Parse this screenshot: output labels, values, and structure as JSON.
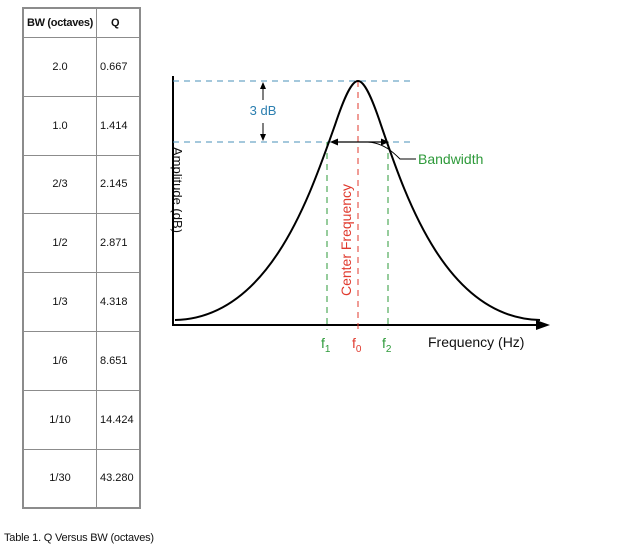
{
  "table": {
    "headers": [
      "BW (octaves)",
      "Q"
    ],
    "rows": [
      {
        "bw": "2.0",
        "q": "0.667"
      },
      {
        "bw": "1.0",
        "q": "1.414"
      },
      {
        "bw": "2/3",
        "q": "2.145"
      },
      {
        "bw": "1/2",
        "q": "2.871"
      },
      {
        "bw": "1/3",
        "q": "4.318"
      },
      {
        "bw": "1/6",
        "q": "8.651"
      },
      {
        "bw": "1/10",
        "q": "14.424"
      },
      {
        "bw": "1/30",
        "q": "43.280"
      }
    ]
  },
  "caption": "Table 1. Q Versus BW (octaves)",
  "diagram": {
    "x_axis_label": "Frequency (Hz)",
    "y_axis_label": "Amplitude (dB)",
    "db_label": "3 dB",
    "bandwidth_label": "Bandwidth",
    "center_label": "Center Frequency",
    "f1": {
      "base": "f",
      "sub": "1"
    },
    "f0": {
      "base": "f",
      "sub": "0"
    },
    "f2": {
      "base": "f",
      "sub": "2"
    },
    "colors": {
      "curve": "#000000",
      "db_guides": "#4a90b8",
      "db_text": "#2c7fb0",
      "bandwidth": "#2e9a3a",
      "center": "#e03a2e"
    }
  }
}
